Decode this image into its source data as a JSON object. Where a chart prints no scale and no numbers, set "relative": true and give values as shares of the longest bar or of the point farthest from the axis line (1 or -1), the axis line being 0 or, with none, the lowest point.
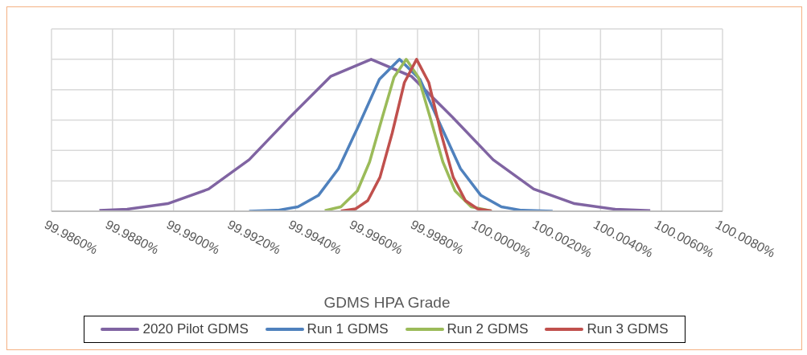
{
  "chart_data": {
    "type": "line",
    "xlabel": "GDMS HPA Grade",
    "relative": true,
    "grid": true,
    "legend": "bottom",
    "marker": "none",
    "line_style": "solid",
    "xlim": [
      99.986,
      100.008
    ],
    "xticks": [
      {
        "value": 99.986,
        "label": "99.9860%"
      },
      {
        "value": 99.988,
        "label": "99.9880%"
      },
      {
        "value": 99.99,
        "label": "99.9900%"
      },
      {
        "value": 99.992,
        "label": "99.9920%"
      },
      {
        "value": 99.994,
        "label": "99.9940%"
      },
      {
        "value": 99.996,
        "label": "99.9960%"
      },
      {
        "value": 99.998,
        "label": "99.9980%"
      },
      {
        "value": 100.0,
        "label": "100.0000%"
      },
      {
        "value": 100.002,
        "label": "100.0020%"
      },
      {
        "value": 100.004,
        "label": "100.0040%"
      },
      {
        "value": 100.006,
        "label": "100.0060%"
      },
      {
        "value": 100.008,
        "label": "100.0080%"
      }
    ],
    "series": [
      {
        "name": "2020 Pilot GDMS",
        "color": "#8064a2",
        "x": [
          99.98757,
          99.98848,
          99.98981,
          99.99115,
          99.99248,
          99.99381,
          99.99515,
          99.99648,
          99.99781,
          99.99915,
          100.00048,
          100.00181,
          100.00315,
          100.00448,
          100.00563
        ],
        "values": [
          0.005,
          0.013,
          0.05,
          0.146,
          0.339,
          0.618,
          0.887,
          1,
          0.887,
          0.618,
          0.339,
          0.146,
          0.05,
          0.013,
          0.004
        ]
      },
      {
        "name": "Run 1 GDMS",
        "color": "#4f81bd",
        "x": [
          99.99248,
          99.99341,
          99.99408,
          99.99475,
          99.99541,
          99.99608,
          99.99675,
          99.99741,
          99.99808,
          99.99875,
          99.99941,
          100.00008,
          100.00075,
          100.00141,
          100.00243
        ],
        "values": [
          0.0004,
          0.006,
          0.029,
          0.104,
          0.28,
          0.568,
          0.868,
          1,
          0.868,
          0.568,
          0.28,
          0.104,
          0.029,
          0.006,
          0.0003
        ]
      },
      {
        "name": "Run 2 GDMS",
        "color": "#9bbb59",
        "x": [
          99.99496,
          99.99549,
          99.99603,
          99.99643,
          99.99683,
          99.99723,
          99.99763,
          99.99803,
          99.99843,
          99.99883,
          99.99923,
          99.99976,
          100.00043
        ],
        "values": [
          0.004,
          0.029,
          0.135,
          0.325,
          0.607,
          0.882,
          1,
          0.882,
          0.607,
          0.325,
          0.135,
          0.029,
          0.002
        ]
      },
      {
        "name": "Run 3 GDMS",
        "color": "#c0504d",
        "x": [
          99.99549,
          99.99597,
          99.99637,
          99.99677,
          99.99717,
          99.99757,
          99.99797,
          99.99837,
          99.99877,
          99.99917,
          99.99957,
          99.99997,
          100.00043
        ],
        "values": [
          0.002,
          0.016,
          0.07,
          0.224,
          0.514,
          0.847,
          1,
          0.847,
          0.514,
          0.224,
          0.07,
          0.016,
          0.002
        ]
      }
    ]
  }
}
